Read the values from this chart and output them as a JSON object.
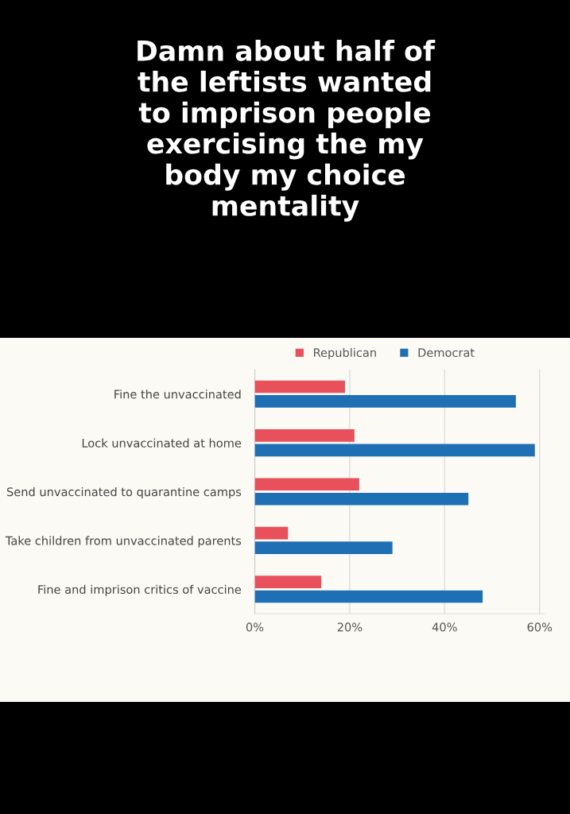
{
  "chart_data": {
    "type": "bar",
    "orientation": "horizontal",
    "title": "Damn about half of\nthe leftists wanted\nto imprison people\nexercising the my\nbody my choice\nmentality",
    "categories": [
      "Fine the unvaccinated",
      "Lock unvaccinated at home",
      "Send unvaccinated to quarantine camps",
      "Take children from unvaccinated parents",
      "Fine and imprison critics of vaccine"
    ],
    "series": [
      {
        "name": "Republican",
        "color": "#e8505b",
        "values": [
          19,
          21,
          22,
          7,
          14
        ]
      },
      {
        "name": "Democrat",
        "color": "#1f6fb5",
        "values": [
          55,
          59,
          45,
          29,
          48
        ]
      }
    ],
    "xlim": [
      0,
      61
    ],
    "xticks": [
      {
        "value": 0,
        "label": "0%"
      },
      {
        "value": 20,
        "label": "20%"
      },
      {
        "value": 40,
        "label": "40%"
      },
      {
        "value": 60,
        "label": "60%"
      }
    ],
    "grid": "x",
    "legend": "top"
  }
}
